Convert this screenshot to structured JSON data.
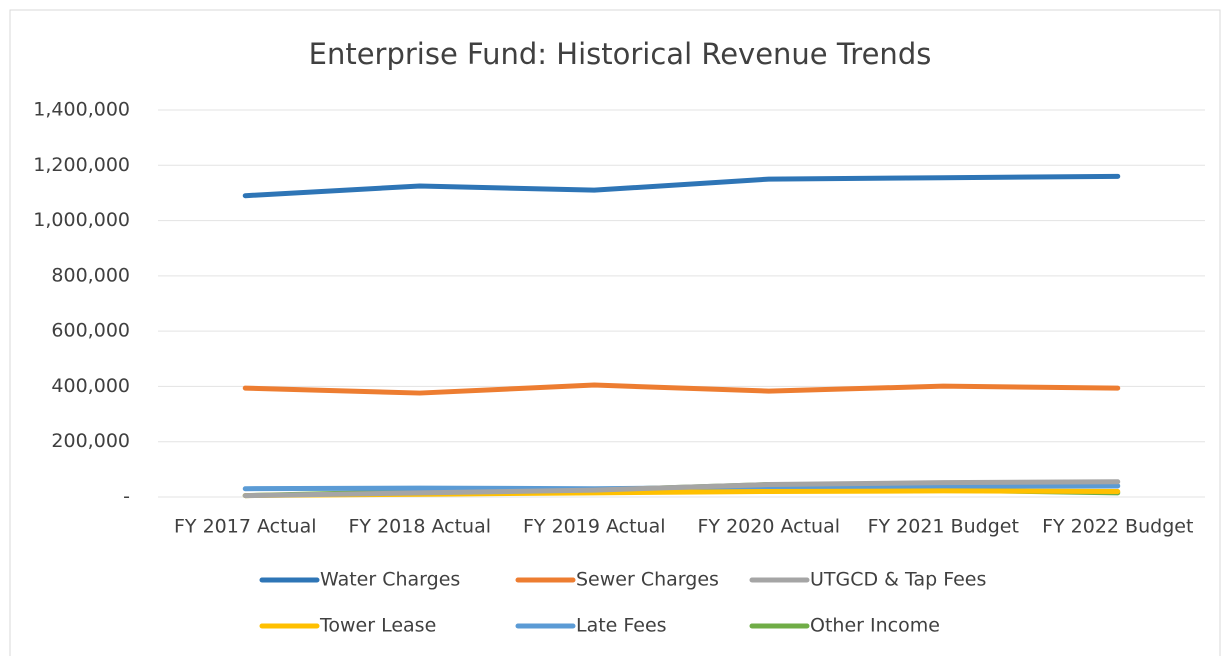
{
  "chart_data": {
    "type": "line",
    "title": "Enterprise Fund: Historical Revenue Trends",
    "categories": [
      "FY 2017 Actual",
      "FY 2018 Actual",
      "FY 2019 Actual",
      "FY 2020 Actual",
      "FY 2021 Budget",
      "FY 2022 Budget"
    ],
    "series": [
      {
        "name": "Water Charges",
        "color": "#2e75b6",
        "values": [
          1090000,
          1125000,
          1110000,
          1150000,
          1155000,
          1160000
        ]
      },
      {
        "name": "Sewer Charges",
        "color": "#ed7d31",
        "values": [
          394000,
          376000,
          405000,
          383000,
          401000,
          394000
        ]
      },
      {
        "name": "UTGCD & Tap Fees",
        "color": "#a5a5a5",
        "values": [
          5000,
          15000,
          25000,
          45000,
          52000,
          55000
        ]
      },
      {
        "name": "Tower Lease",
        "color": "#ffc000",
        "values": [
          5000,
          10000,
          15000,
          20000,
          22000,
          20000
        ]
      },
      {
        "name": "Late Fees",
        "color": "#5b9bd5",
        "values": [
          30000,
          32000,
          30000,
          35000,
          38000,
          40000
        ]
      },
      {
        "name": "Other Income",
        "color": "#70ad47",
        "values": [
          5000,
          20000,
          25000,
          45000,
          25000,
          15000
        ]
      }
    ],
    "ylim": [
      0,
      1400000
    ],
    "yticks": [
      {
        "value": 0,
        "label": "-"
      },
      {
        "value": 200000,
        "label": "200,000"
      },
      {
        "value": 400000,
        "label": "400,000"
      },
      {
        "value": 600000,
        "label": "600,000"
      },
      {
        "value": 800000,
        "label": "800,000"
      },
      {
        "value": 1000000,
        "label": "1,000,000"
      },
      {
        "value": 1200000,
        "label": "1,200,000"
      },
      {
        "value": 1400000,
        "label": "1,400,000"
      }
    ],
    "grid": true,
    "legend": "bottom"
  }
}
